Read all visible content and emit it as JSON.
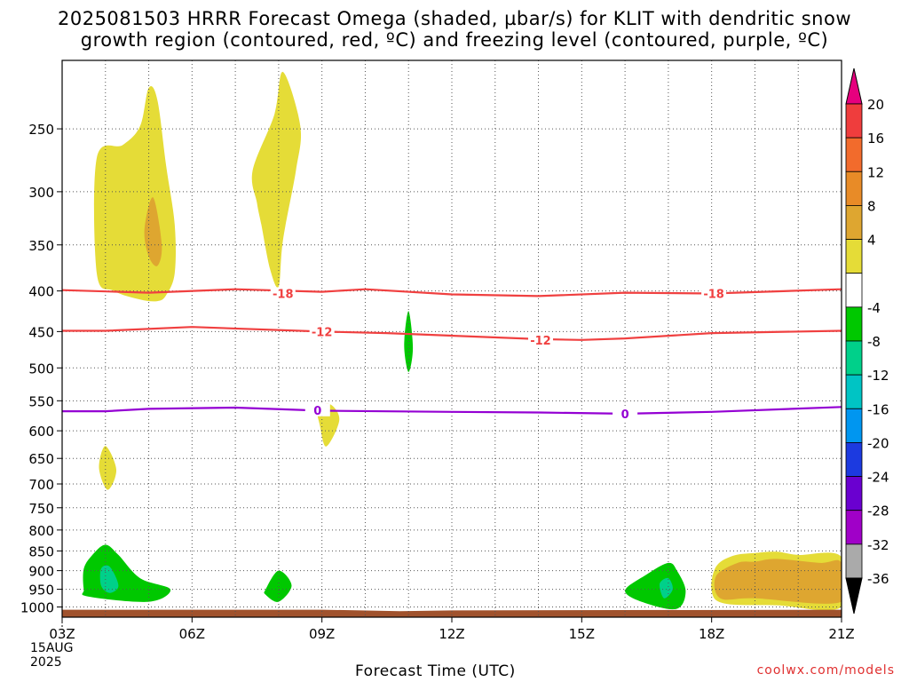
{
  "title": {
    "line1": "2025081503 HRRR Forecast Omega (shaded, µbar/s) for KLIT with dendritic snow",
    "line2": "growth region (contoured, red, ºC) and freezing level (contoured, purple, ºC)"
  },
  "xaxis_title": "Forecast Time (UTC)",
  "credit": "coolwx.com/models",
  "date_label": {
    "month_day": "15AUG",
    "year": "2025"
  },
  "chart_data": {
    "type": "heatmap",
    "x_ticks": [
      "03Z",
      "06Z",
      "09Z",
      "12Z",
      "15Z",
      "18Z",
      "21Z"
    ],
    "x_range_hours": [
      3,
      21
    ],
    "y_ticks": [
      250,
      300,
      350,
      400,
      450,
      500,
      550,
      600,
      650,
      700,
      750,
      800,
      850,
      900,
      950,
      1000
    ],
    "y_axis": "pressure (hPa), log scale, inverted",
    "y_range_hpa": [
      1030,
      205
    ],
    "grid": true,
    "colorbar": {
      "labels": [
        "20",
        "16",
        "12",
        "8",
        "4",
        "-4",
        "-8",
        "-12",
        "-16",
        "-20",
        "-24",
        "-28",
        "-32",
        "-36"
      ],
      "colors_top_to_bottom": [
        "#ef3d3d",
        "#f26b2c",
        "#e88b27",
        "#dea630",
        "#e5dc37",
        "#ffffff",
        "#00c800",
        "#00d08a",
        "#00c4c4",
        "#0096f0",
        "#1c3ae0",
        "#6a00d0",
        "#a000c8",
        "#aaaaaa"
      ],
      "top_arrow_color": "#e6007e",
      "bottom_arrow_color": "#000000"
    },
    "contours": [
      {
        "label": "-18",
        "color": "#f04040",
        "values_hpa": [
          [
            3,
            399
          ],
          [
            5,
            402
          ],
          [
            7,
            398
          ],
          [
            9,
            401
          ],
          [
            10,
            398
          ],
          [
            12,
            404
          ],
          [
            14,
            406
          ],
          [
            16,
            402
          ],
          [
            18,
            403
          ],
          [
            21,
            398
          ]
        ],
        "label_positions": [
          [
            8.1,
            403
          ],
          [
            18.05,
            403
          ]
        ]
      },
      {
        "label": "-12",
        "color": "#f04040",
        "values_hpa": [
          [
            3,
            449
          ],
          [
            4,
            449
          ],
          [
            6,
            444
          ],
          [
            9,
            450
          ],
          [
            10.5,
            452
          ],
          [
            14,
            460
          ],
          [
            15,
            461
          ],
          [
            16,
            459
          ],
          [
            18,
            452
          ],
          [
            21,
            449
          ]
        ],
        "label_positions": [
          [
            9.0,
            450
          ],
          [
            14.05,
            461
          ]
        ]
      },
      {
        "label": "0",
        "color": "#9400d3",
        "values_hpa": [
          [
            3,
            567
          ],
          [
            4,
            567
          ],
          [
            5,
            563
          ],
          [
            7,
            561
          ],
          [
            9,
            566
          ],
          [
            12,
            568
          ],
          [
            14,
            569
          ],
          [
            16,
            571
          ],
          [
            18,
            568
          ],
          [
            21,
            560
          ]
        ],
        "label_positions": [
          [
            8.9,
            565
          ],
          [
            16.0,
            571
          ]
        ]
      }
    ],
    "shaded_regions": [
      {
        "category": "4 to 8",
        "color": "#e5dc37",
        "outline_hpa": [
          [
            3.8,
            272
          ],
          [
            4.4,
            262
          ],
          [
            4.8,
            248
          ],
          [
            5.0,
            222
          ],
          [
            5.2,
            230
          ],
          [
            5.4,
            278
          ],
          [
            5.6,
            330
          ],
          [
            5.6,
            380
          ],
          [
            5.4,
            405
          ],
          [
            5.2,
            412
          ],
          [
            4.8,
            410
          ],
          [
            4.2,
            400
          ],
          [
            3.8,
            380
          ]
        ]
      },
      {
        "category": "8 to 12",
        "color": "#dea630",
        "outline_hpa": [
          [
            4.9,
            335
          ],
          [
            5.1,
            305
          ],
          [
            5.3,
            350
          ],
          [
            5.2,
            372
          ],
          [
            5.0,
            362
          ]
        ]
      },
      {
        "category": "4 to 8",
        "color": "#e5dc37",
        "outline_hpa": [
          [
            7.4,
            282
          ],
          [
            7.9,
            240
          ],
          [
            8.1,
            212
          ],
          [
            8.5,
            248
          ],
          [
            8.4,
            282
          ],
          [
            8.1,
            345
          ],
          [
            8.0,
            395
          ],
          [
            7.8,
            375
          ],
          [
            7.6,
            330
          ],
          [
            7.5,
            310
          ]
        ]
      },
      {
        "category": "4 to 8",
        "color": "#e5dc37",
        "outline_hpa": [
          [
            8.9,
            562
          ],
          [
            9.2,
            556
          ],
          [
            9.4,
            582
          ],
          [
            9.1,
            628
          ],
          [
            8.95,
            590
          ]
        ]
      },
      {
        "category": "4 to 8",
        "color": "#e5dc37",
        "outline_hpa": [
          [
            4.0,
            627
          ],
          [
            4.25,
            672
          ],
          [
            4.05,
            712
          ],
          [
            3.85,
            668
          ]
        ]
      },
      {
        "category": "-8 to -4",
        "color": "#00c800",
        "outline_hpa": [
          [
            10.9,
            468
          ],
          [
            11.0,
            424
          ],
          [
            11.1,
            472
          ],
          [
            11.0,
            506
          ]
        ]
      },
      {
        "category": "-8 to -4",
        "color": "#00c800",
        "outline_hpa": [
          [
            3.5,
            895
          ],
          [
            3.7,
            860
          ],
          [
            4.0,
            835
          ],
          [
            4.3,
            860
          ],
          [
            4.8,
            920
          ],
          [
            5.5,
            950
          ],
          [
            5.0,
            985
          ],
          [
            3.6,
            970
          ],
          [
            3.5,
            950
          ]
        ]
      },
      {
        "category": "-12 to -8",
        "color": "#00d08a",
        "outline_hpa": [
          [
            3.9,
            895
          ],
          [
            4.1,
            890
          ],
          [
            4.3,
            940
          ],
          [
            4.1,
            960
          ],
          [
            3.9,
            940
          ]
        ]
      },
      {
        "category": "-8 to -4",
        "color": "#00c800",
        "outline_hpa": [
          [
            7.7,
            950
          ],
          [
            8.0,
            900
          ],
          [
            8.3,
            940
          ],
          [
            8.0,
            985
          ],
          [
            7.7,
            965
          ]
        ]
      },
      {
        "category": "-8 to -4",
        "color": "#00c800",
        "outline_hpa": [
          [
            16.0,
            955
          ],
          [
            16.5,
            910
          ],
          [
            17.0,
            880
          ],
          [
            17.2,
            900
          ],
          [
            17.4,
            955
          ],
          [
            17.2,
            1005
          ],
          [
            16.5,
            990
          ]
        ]
      },
      {
        "category": "-12 to -8",
        "color": "#00d08a",
        "outline_hpa": [
          [
            16.8,
            935
          ],
          [
            17.0,
            920
          ],
          [
            17.1,
            950
          ],
          [
            16.9,
            975
          ]
        ]
      },
      {
        "category": "4 to 8",
        "color": "#e5dc37",
        "outline_hpa": [
          [
            18.0,
            955
          ],
          [
            18.1,
            890
          ],
          [
            18.5,
            862
          ],
          [
            19.0,
            855
          ],
          [
            19.5,
            852
          ],
          [
            20.0,
            860
          ],
          [
            21,
            865
          ],
          [
            21,
            1000
          ],
          [
            19.5,
            995
          ],
          [
            18.3,
            990
          ]
        ]
      },
      {
        "category": "8 to 12",
        "color": "#dea630",
        "outline_hpa": [
          [
            18.1,
            915
          ],
          [
            18.6,
            880
          ],
          [
            19.0,
            877
          ],
          [
            19.5,
            870
          ],
          [
            20.5,
            880
          ],
          [
            21,
            880
          ],
          [
            21,
            985
          ],
          [
            19.0,
            975
          ],
          [
            18.2,
            975
          ]
        ]
      },
      {
        "category": "terrain",
        "color": "#a0522d",
        "outline_hpa": [
          [
            3,
            1008
          ],
          [
            9,
            1008
          ],
          [
            10.8,
            1012
          ],
          [
            12,
            1010
          ],
          [
            21,
            1008
          ],
          [
            21,
            1030
          ],
          [
            3,
            1030
          ]
        ]
      }
    ]
  }
}
